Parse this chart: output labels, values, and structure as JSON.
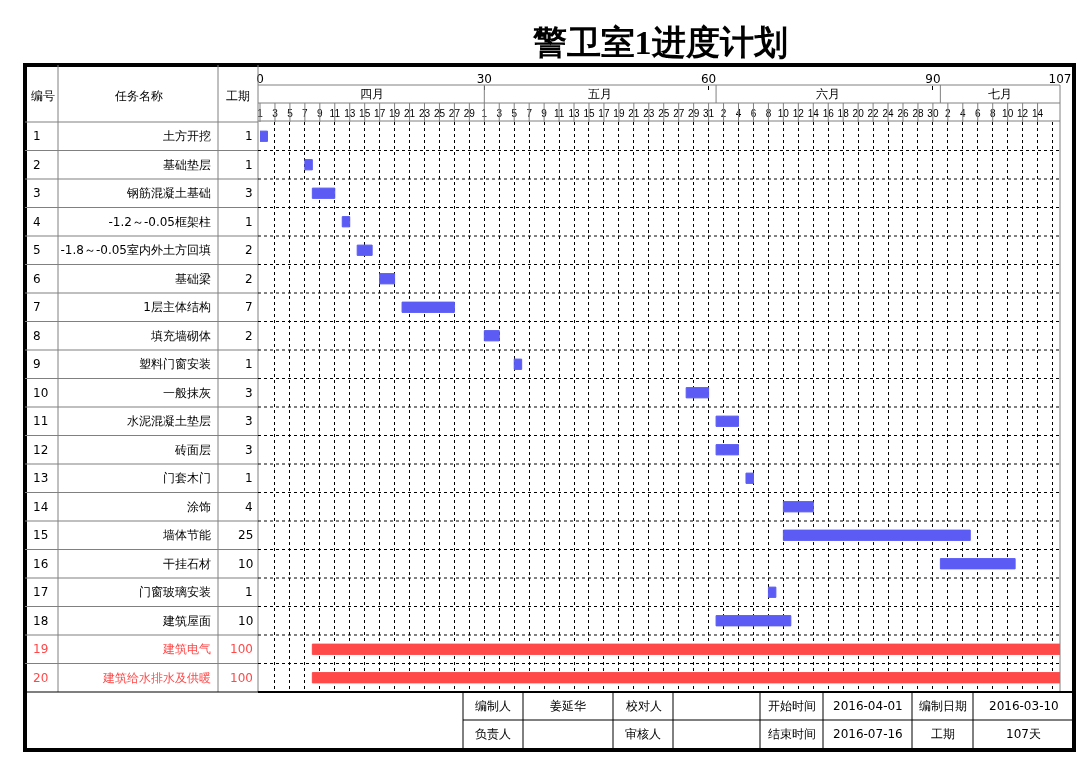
{
  "chart_data": {
    "type": "bar",
    "orientation": "horizontal",
    "title": "警卫室1进度计划",
    "categories": [
      "土方开挖",
      "基础垫层",
      "钢筋混凝土基础",
      "-1.2～-0.05框架柱",
      "-1.8～-0.05室内外土方回填",
      "基础梁",
      "1层主体结构",
      "填充墙砌体",
      "塑料门窗安装",
      "一般抹灰",
      "水泥混凝土垫层",
      "砖面层",
      "门套木门",
      "涂饰",
      "墙体节能",
      "干挂石材",
      "门窗玻璃安装",
      "建筑屋面",
      "建筑电气",
      "建筑给水排水及供暖"
    ],
    "base": [
      0,
      6,
      7,
      11,
      13,
      16,
      19,
      30,
      34,
      57,
      61,
      61,
      65,
      70,
      70,
      91,
      68,
      61,
      7,
      7
    ],
    "values": [
      1,
      1,
      3,
      1,
      2,
      2,
      7,
      2,
      1,
      3,
      3,
      3,
      1,
      4,
      25,
      10,
      1,
      10,
      100,
      100
    ],
    "colors": [
      "#5c5cf5",
      "#5c5cf5",
      "#5c5cf5",
      "#5c5cf5",
      "#5c5cf5",
      "#5c5cf5",
      "#5c5cf5",
      "#5c5cf5",
      "#5c5cf5",
      "#5c5cf5",
      "#5c5cf5",
      "#5c5cf5",
      "#5c5cf5",
      "#5c5cf5",
      "#5c5cf5",
      "#5c5cf5",
      "#5c5cf5",
      "#5c5cf5",
      "#ff4848",
      "#ff4848"
    ],
    "data_labels": true,
    "xlim": [
      0,
      107
    ],
    "xticks": [
      0,
      30,
      60,
      90,
      107
    ],
    "x2lim": [
      "2016-04-01",
      "2016-07-17"
    ],
    "x2ticks": [
      {
        "value": "2016-04-01",
        "label": "1"
      },
      {
        "value": "2016-04-03",
        "label": "3"
      },
      {
        "value": "2016-04-05",
        "label": "5"
      },
      {
        "value": "2016-04-07",
        "label": "7"
      },
      {
        "value": "2016-04-09",
        "label": "9"
      },
      {
        "value": "2016-04-11",
        "label": "11"
      },
      {
        "value": "2016-04-13",
        "label": "13"
      },
      {
        "value": "2016-04-15",
        "label": "15"
      },
      {
        "value": "2016-04-17",
        "label": "17"
      },
      {
        "value": "2016-04-19",
        "label": "19"
      },
      {
        "value": "2016-04-21",
        "label": "21"
      },
      {
        "value": "2016-04-23",
        "label": "23"
      },
      {
        "value": "2016-04-25",
        "label": "25"
      },
      {
        "value": "2016-04-27",
        "label": "27"
      },
      {
        "value": "2016-04-29",
        "label": "29"
      },
      {
        "value": "2016-05-01",
        "label": "1"
      },
      {
        "value": "2016-05-03",
        "label": "3"
      },
      {
        "value": "2016-05-05",
        "label": "5"
      },
      {
        "value": "2016-05-07",
        "label": "7"
      },
      {
        "value": "2016-05-09",
        "label": "9"
      },
      {
        "value": "2016-05-11",
        "label": "11"
      },
      {
        "value": "2016-05-13",
        "label": "13"
      },
      {
        "value": "2016-05-15",
        "label": "15"
      },
      {
        "value": "2016-05-17",
        "label": "17"
      },
      {
        "value": "2016-05-19",
        "label": "19"
      },
      {
        "value": "2016-05-21",
        "label": "21"
      },
      {
        "value": "2016-05-23",
        "label": "23"
      },
      {
        "value": "2016-05-25",
        "label": "25"
      },
      {
        "value": "2016-05-27",
        "label": "27"
      },
      {
        "value": "2016-05-29",
        "label": "29"
      },
      {
        "value": "2016-05-31",
        "label": "31"
      },
      {
        "value": "2016-06-02",
        "label": "2"
      },
      {
        "value": "2016-06-04",
        "label": "4"
      },
      {
        "value": "2016-06-06",
        "label": "6"
      },
      {
        "value": "2016-06-08",
        "label": "8"
      },
      {
        "value": "2016-06-10",
        "label": "10"
      },
      {
        "value": "2016-06-12",
        "label": "12"
      },
      {
        "value": "2016-06-14",
        "label": "14"
      },
      {
        "value": "2016-06-16",
        "label": "16"
      },
      {
        "value": "2016-06-18",
        "label": "18"
      },
      {
        "value": "2016-06-20",
        "label": "20"
      },
      {
        "value": "2016-06-22",
        "label": "22"
      },
      {
        "value": "2016-06-24",
        "label": "24"
      },
      {
        "value": "2016-06-26",
        "label": "26"
      },
      {
        "value": "2016-06-28",
        "label": "28"
      },
      {
        "value": "2016-06-30",
        "label": "30"
      },
      {
        "value": "2016-07-02",
        "label": "2"
      },
      {
        "value": "2016-07-04",
        "label": "4"
      },
      {
        "value": "2016-07-06",
        "label": "6"
      },
      {
        "value": "2016-07-08",
        "label": "8"
      },
      {
        "value": "2016-07-10",
        "label": "10"
      },
      {
        "value": "2016-07-12",
        "label": "12"
      },
      {
        "value": "2016-07-14",
        "label": "14"
      }
    ],
    "grid": true,
    "annotations": [
      "编号",
      "任务名称",
      "工期",
      "1",
      "2",
      "3",
      "4",
      "5",
      "6",
      "7",
      "8",
      "9",
      "10",
      "11",
      "12",
      "13",
      "14",
      "15",
      "16",
      "17",
      "18",
      "19",
      "20",
      "四月",
      "五月",
      "六月",
      "七月",
      "编制人",
      "姜延华",
      "校对人",
      "开始时间",
      "2016-04-01",
      "编制日期",
      "2016-03-10",
      "负责人",
      "审核人",
      "结束时间",
      "2016-07-16",
      "工期",
      "107天"
    ]
  }
}
